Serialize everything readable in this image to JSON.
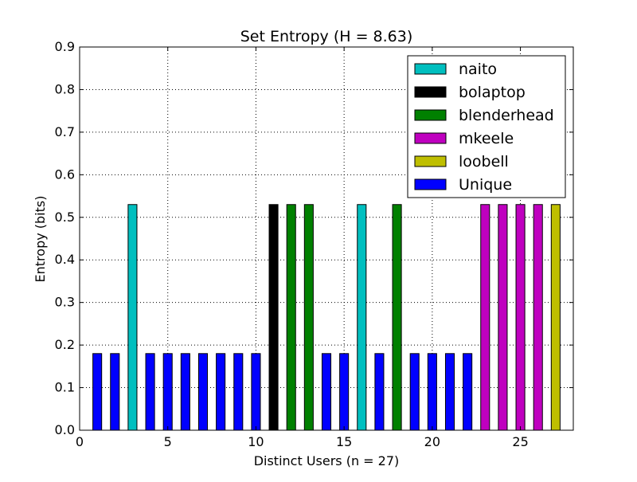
{
  "chart_data": {
    "type": "bar",
    "title": "Set Entropy (H = 8.63)",
    "xlabel": "Distinct Users (n = 27)",
    "ylabel": "Entropy (bits)",
    "xlim": [
      0,
      28
    ],
    "ylim": [
      0,
      0.9
    ],
    "xticks": [
      "0",
      "5",
      "10",
      "15",
      "20",
      "25"
    ],
    "yticks": [
      "0.0",
      "0.1",
      "0.2",
      "0.3",
      "0.4",
      "0.5",
      "0.6",
      "0.7",
      "0.8",
      "0.9"
    ],
    "grid": true,
    "legend_position": "top-right",
    "series": [
      {
        "name": "naito",
        "color": "#00bfbf",
        "x": [
          3,
          16
        ],
        "values": [
          0.53,
          0.53
        ]
      },
      {
        "name": "bolaptop",
        "color": "#000000",
        "x": [
          11
        ],
        "values": [
          0.53
        ]
      },
      {
        "name": "blenderhead",
        "color": "#008000",
        "x": [
          12,
          13,
          18
        ],
        "values": [
          0.53,
          0.53,
          0.53
        ]
      },
      {
        "name": "mkeele",
        "color": "#bf00bf",
        "x": [
          23,
          24,
          25,
          26
        ],
        "values": [
          0.53,
          0.53,
          0.53,
          0.53
        ]
      },
      {
        "name": "loobell",
        "color": "#bfbf00",
        "x": [
          27
        ],
        "values": [
          0.53
        ]
      },
      {
        "name": "Unique",
        "color": "#0000ff",
        "x": [
          1,
          2,
          4,
          5,
          6,
          7,
          8,
          9,
          10,
          14,
          15,
          17,
          19,
          20,
          21,
          22
        ],
        "values": [
          0.18,
          0.18,
          0.18,
          0.18,
          0.18,
          0.18,
          0.18,
          0.18,
          0.18,
          0.18,
          0.18,
          0.18,
          0.18,
          0.18,
          0.18,
          0.18
        ]
      }
    ]
  }
}
